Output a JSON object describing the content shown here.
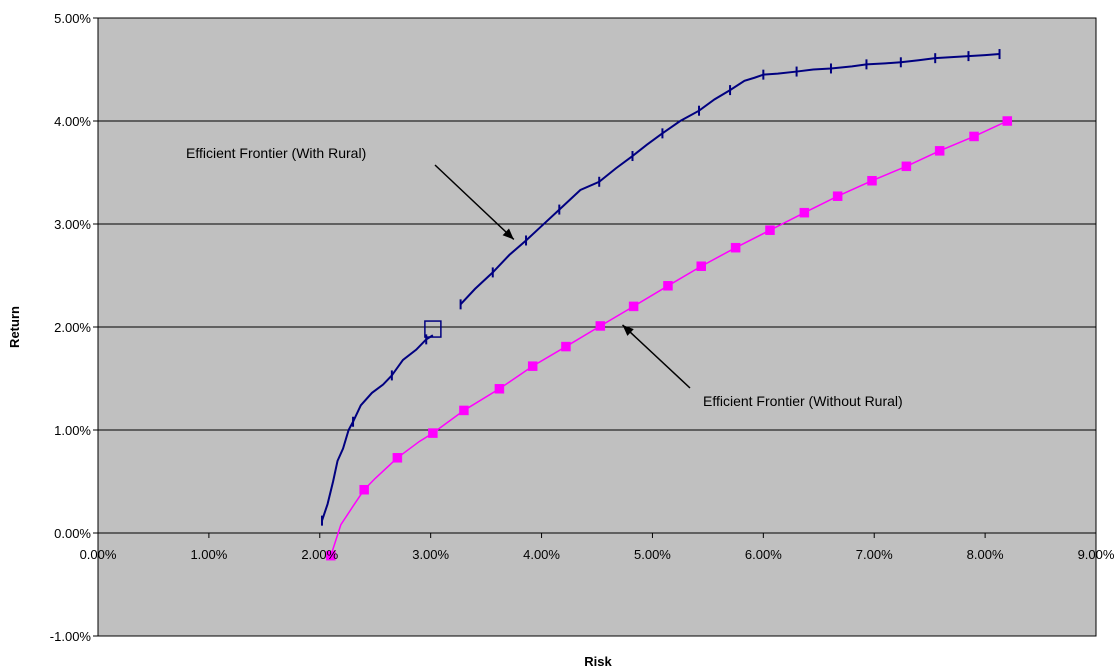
{
  "chart_data": {
    "type": "scatter",
    "title": "",
    "xlabel": "Risk",
    "ylabel": "Return",
    "xlim": [
      0,
      9
    ],
    "ylim": [
      -1,
      5
    ],
    "x_ticks": [
      "0.00%",
      "1.00%",
      "2.00%",
      "3.00%",
      "4.00%",
      "5.00%",
      "6.00%",
      "7.00%",
      "8.00%",
      "9.00%"
    ],
    "y_ticks": [
      "-1.00%",
      "0.00%",
      "1.00%",
      "2.00%",
      "3.00%",
      "4.00%",
      "5.00%"
    ],
    "grid": "horizontal",
    "colors": {
      "plot_bg": "#c0c0c0",
      "with_rural": "#000080",
      "without_rural": "#ff00ff"
    },
    "series": [
      {
        "segments": [
          [
            [
              2.02,
              0.12
            ],
            [
              2.07,
              0.28
            ],
            [
              2.12,
              0.5
            ],
            [
              2.16,
              0.7
            ],
            [
              2.21,
              0.82
            ],
            [
              2.26,
              1.0
            ],
            [
              2.3,
              1.08
            ],
            [
              2.37,
              1.24
            ],
            [
              2.47,
              1.36
            ],
            [
              2.57,
              1.44
            ],
            [
              2.65,
              1.53
            ],
            [
              2.75,
              1.68
            ],
            [
              2.87,
              1.78
            ],
            [
              2.96,
              1.88
            ],
            [
              3.02,
              1.92
            ]
          ],
          [
            [
              3.27,
              2.22
            ],
            [
              3.4,
              2.37
            ],
            [
              3.56,
              2.53
            ],
            [
              3.71,
              2.7
            ],
            [
              3.86,
              2.84
            ],
            [
              4.0,
              2.98
            ],
            [
              4.16,
              3.14
            ],
            [
              4.35,
              3.33
            ],
            [
              4.52,
              3.41
            ],
            [
              4.67,
              3.54
            ],
            [
              4.82,
              3.66
            ],
            [
              4.95,
              3.77
            ],
            [
              5.09,
              3.88
            ],
            [
              5.25,
              4.0
            ],
            [
              5.42,
              4.1
            ],
            [
              5.56,
              4.21
            ],
            [
              5.7,
              4.3
            ],
            [
              5.83,
              4.39
            ],
            [
              5.92,
              4.42
            ],
            [
              6.0,
              4.45
            ],
            [
              6.13,
              4.46
            ],
            [
              6.3,
              4.48
            ],
            [
              6.45,
              4.5
            ],
            [
              6.61,
              4.51
            ],
            [
              6.8,
              4.53
            ],
            [
              6.93,
              4.55
            ],
            [
              7.1,
              4.56
            ],
            [
              7.24,
              4.57
            ],
            [
              7.4,
              4.59
            ],
            [
              7.55,
              4.61
            ],
            [
              7.7,
              4.62
            ],
            [
              7.85,
              4.63
            ],
            [
              8.0,
              4.64
            ],
            [
              8.13,
              4.65
            ]
          ]
        ],
        "tick_points": [
          [
            2.02,
            0.12
          ],
          [
            2.3,
            1.08
          ],
          [
            2.65,
            1.53
          ],
          [
            2.96,
            1.88
          ],
          [
            3.27,
            2.22
          ],
          [
            3.56,
            2.53
          ],
          [
            3.86,
            2.84
          ],
          [
            4.16,
            3.14
          ],
          [
            4.52,
            3.41
          ],
          [
            4.82,
            3.66
          ],
          [
            5.09,
            3.88
          ],
          [
            5.42,
            4.1
          ],
          [
            5.7,
            4.3
          ],
          [
            6.0,
            4.45
          ],
          [
            6.3,
            4.48
          ],
          [
            6.61,
            4.51
          ],
          [
            6.93,
            4.55
          ],
          [
            7.24,
            4.57
          ],
          [
            7.55,
            4.61
          ],
          [
            7.85,
            4.63
          ],
          [
            8.13,
            4.65
          ]
        ],
        "highlight_point": [
          3.02,
          1.98
        ]
      },
      {
        "points": [
          [
            2.1,
            -0.22
          ],
          [
            2.19,
            0.08
          ],
          [
            2.3,
            0.26
          ],
          [
            2.4,
            0.42
          ],
          [
            2.5,
            0.53
          ],
          [
            2.7,
            0.73
          ],
          [
            2.9,
            0.89
          ],
          [
            3.02,
            0.97
          ],
          [
            3.3,
            1.19
          ],
          [
            3.62,
            1.4
          ],
          [
            3.92,
            1.62
          ],
          [
            4.22,
            1.81
          ],
          [
            4.53,
            2.01
          ],
          [
            4.83,
            2.2
          ],
          [
            5.14,
            2.4
          ],
          [
            5.44,
            2.59
          ],
          [
            5.75,
            2.77
          ],
          [
            6.06,
            2.94
          ],
          [
            6.37,
            3.11
          ],
          [
            6.67,
            3.27
          ],
          [
            6.98,
            3.42
          ],
          [
            7.29,
            3.56
          ],
          [
            7.59,
            3.71
          ],
          [
            7.9,
            3.85
          ],
          [
            8.2,
            4.0
          ]
        ],
        "marker_points": [
          [
            2.1,
            -0.22
          ],
          [
            2.4,
            0.42
          ],
          [
            2.7,
            0.73
          ],
          [
            3.02,
            0.97
          ],
          [
            3.3,
            1.19
          ],
          [
            3.62,
            1.4
          ],
          [
            3.92,
            1.62
          ],
          [
            4.22,
            1.81
          ],
          [
            4.53,
            2.01
          ],
          [
            4.83,
            2.2
          ],
          [
            5.14,
            2.4
          ],
          [
            5.44,
            2.59
          ],
          [
            5.75,
            2.77
          ],
          [
            6.06,
            2.94
          ],
          [
            6.37,
            3.11
          ],
          [
            6.67,
            3.27
          ],
          [
            6.98,
            3.42
          ],
          [
            7.29,
            3.56
          ],
          [
            7.59,
            3.71
          ],
          [
            7.9,
            3.85
          ],
          [
            8.2,
            4.0
          ]
        ]
      }
    ],
    "annotations": [
      {
        "text": "Efficient Frontier (With Rural)",
        "arrow_to": [
          3.75,
          2.85
        ]
      },
      {
        "text": "Efficient Frontier (Without Rural)",
        "arrow_to": [
          4.73,
          2.02
        ]
      }
    ]
  }
}
